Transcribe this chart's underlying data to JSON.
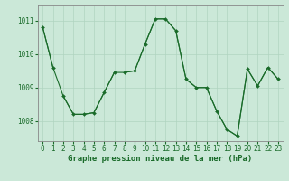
{
  "bg_color": "#cbe8d8",
  "grid_color": "#b0d4c0",
  "line_color": "#1a6b2a",
  "marker_color": "#1a6b2a",
  "xlabel": "Graphe pression niveau de la mer (hPa)",
  "xlabel_fontsize": 6.5,
  "tick_fontsize": 5.5,
  "xlim": [
    -0.5,
    23.5
  ],
  "ylim": [
    1007.4,
    1011.45
  ],
  "yticks": [
    1008,
    1009,
    1010,
    1011
  ],
  "xticks": [
    0,
    1,
    2,
    3,
    4,
    5,
    6,
    7,
    8,
    9,
    10,
    11,
    12,
    13,
    14,
    15,
    16,
    17,
    18,
    19,
    20,
    21,
    22,
    23
  ],
  "series": [
    {
      "x": [
        0,
        1
      ],
      "y": [
        1010.8,
        1009.6
      ]
    },
    {
      "x": [
        2,
        3,
        4,
        5,
        6,
        7
      ],
      "y": [
        1008.75,
        1008.2,
        1008.2,
        1008.25,
        1008.85,
        1009.45
      ]
    },
    {
      "x": [
        8,
        9,
        10,
        11,
        12,
        13,
        14,
        15
      ],
      "y": [
        1009.45,
        1009.5,
        1010.3,
        1011.05,
        1011.05,
        1010.7,
        1009.25,
        1009.0
      ]
    },
    {
      "x": [
        15,
        16,
        17,
        18,
        19
      ],
      "y": [
        1009.0,
        1009.0,
        1008.3,
        1007.75,
        1007.55
      ]
    },
    {
      "x": [
        19,
        20,
        21,
        22,
        23
      ],
      "y": [
        1007.55,
        1009.55,
        1009.05,
        1009.6,
        1009.25
      ]
    }
  ],
  "long_line": {
    "x": [
      0,
      1,
      2,
      3,
      4,
      5,
      6,
      7,
      8,
      9,
      10,
      11,
      12,
      13,
      14,
      15,
      16,
      17,
      18,
      19,
      20,
      21,
      22,
      23
    ],
    "y": [
      1010.8,
      1009.6,
      1008.75,
      1008.2,
      1008.2,
      1008.25,
      1008.85,
      1009.45,
      1009.45,
      1009.5,
      1010.3,
      1011.05,
      1011.05,
      1010.7,
      1009.25,
      1009.0,
      1009.0,
      1008.3,
      1007.75,
      1007.55,
      1009.55,
      1009.05,
      1009.6,
      1009.25
    ]
  }
}
